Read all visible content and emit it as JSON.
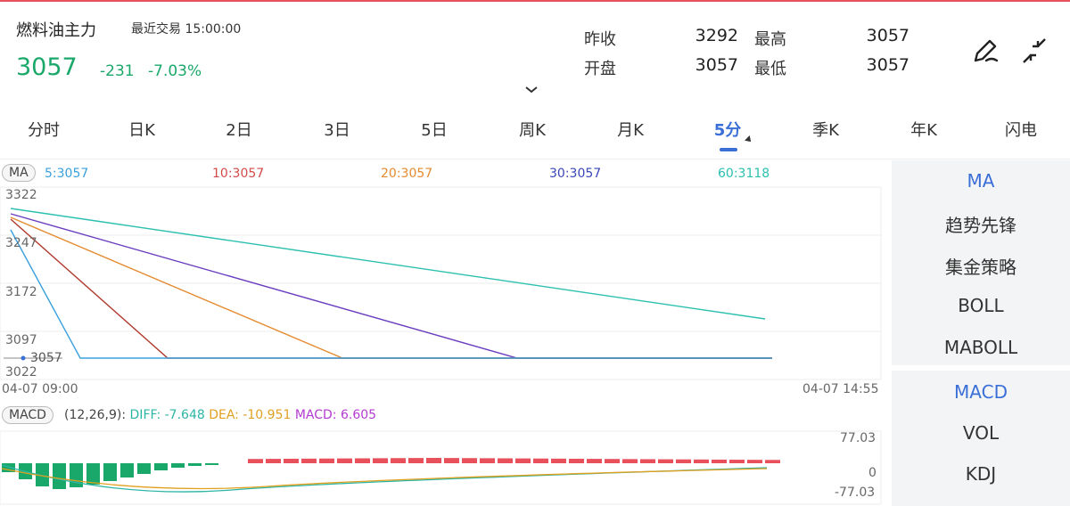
{
  "header": {
    "title": "燃料油主力",
    "last_trade": "最近交易 15:00:00",
    "price": "3057",
    "change": "-231",
    "change_pct": "-7.03%",
    "stats": [
      {
        "label": "昨收",
        "value": "3292"
      },
      {
        "label": "最高",
        "value": "3057"
      },
      {
        "label": "开盘",
        "value": "3057"
      },
      {
        "label": "最低",
        "value": "3057"
      }
    ],
    "icons": [
      "expand-chevron-icon",
      "draw-pen-icon",
      "collapse-arrows-icon"
    ]
  },
  "tabs": [
    "分时",
    "日K",
    "2日",
    "3日",
    "5日",
    "周K",
    "月K",
    "5分",
    "季K",
    "年K",
    "闪电"
  ],
  "active_tab": "5分",
  "ma_indicator": {
    "badge": "MA",
    "values": [
      {
        "label": "5:3057",
        "color": "#3aa0dc"
      },
      {
        "label": "10:3057",
        "color": "#d44a4a"
      },
      {
        "label": "20:3057",
        "color": "#e58a2e"
      },
      {
        "label": "30:3057",
        "color": "#3a46b8"
      },
      {
        "label": "60:3118",
        "color": "#2cc0b0"
      }
    ]
  },
  "main_chart": {
    "y_ticks": [
      "3322",
      "3247",
      "3172",
      "3097",
      "3022"
    ],
    "last_price_tag": "3057",
    "time_start": "04-07 09:00",
    "time_end": "04-07 14:55"
  },
  "macd_indicator": {
    "badge": "MACD",
    "params": "(12,26,9):",
    "diff": "DIFF: -7.648",
    "dea": "DEA: -10.951",
    "macd": "MACD: 6.605",
    "y_ticks": [
      "77.03",
      "0",
      "-77.03"
    ]
  },
  "side_panel_top": [
    "MA",
    "趋势先锋",
    "集金策略",
    "BOLL",
    "MABOLL"
  ],
  "side_panel_bottom": [
    "MACD",
    "VOL",
    "KDJ"
  ],
  "colors": {
    "up": "#e8505b",
    "down": "#1aa86a",
    "accent": "#3a6fd8"
  }
}
